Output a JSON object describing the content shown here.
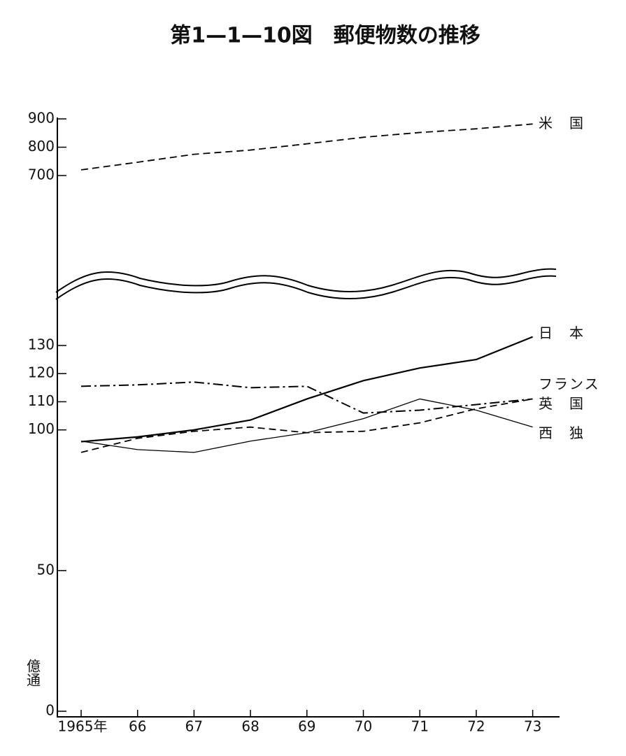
{
  "chart_data": {
    "type": "line",
    "title": "第1—1—10図　郵便物数の推移",
    "y_unit": "億通",
    "categories": [
      "1965年",
      "66",
      "67",
      "68",
      "69",
      "70",
      "71",
      "72",
      "73"
    ],
    "ylim": [
      0,
      900
    ],
    "axis_break": [
      130,
      700
    ],
    "yticks": [
      0,
      50,
      100,
      110,
      120,
      130,
      700,
      800,
      900
    ],
    "series": [
      {
        "name": "米　国",
        "color": "#000000",
        "style": "dashed",
        "values": [
          720,
          747,
          775,
          790,
          812,
          835,
          852,
          865,
          882
        ]
      },
      {
        "name": "日　本",
        "color": "#000000",
        "style": "solid",
        "values": [
          95.8,
          97.5,
          100,
          103.5,
          111,
          117.5,
          122,
          125,
          130.6
        ]
      },
      {
        "name": "フランス",
        "color": "#000000",
        "style": "dash-dot",
        "values": [
          115.5,
          116,
          117,
          115,
          115.5,
          106,
          107,
          109,
          111
        ]
      },
      {
        "name": "英　国",
        "color": "#000000",
        "style": "dashed",
        "values": [
          92,
          97,
          99.5,
          101,
          99,
          99.5,
          102.5,
          107.5,
          111
        ]
      },
      {
        "name": "西　独",
        "color": "#000000",
        "style": "thin",
        "values": [
          96,
          93,
          92,
          96,
          99,
          104,
          111,
          107,
          101
        ]
      }
    ]
  }
}
